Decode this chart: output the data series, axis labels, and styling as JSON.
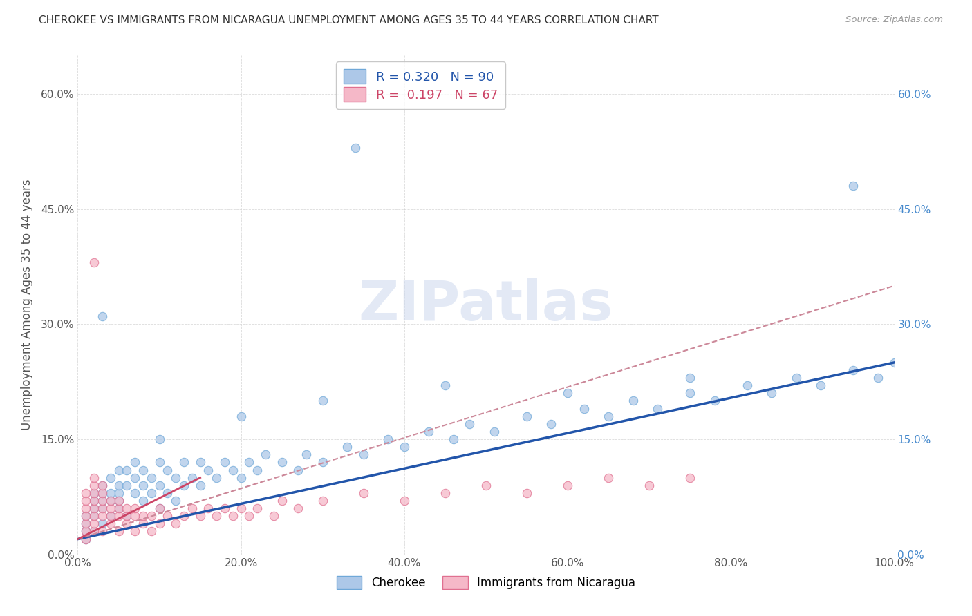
{
  "title": "CHEROKEE VS IMMIGRANTS FROM NICARAGUA UNEMPLOYMENT AMONG AGES 35 TO 44 YEARS CORRELATION CHART",
  "source": "Source: ZipAtlas.com",
  "ylabel": "Unemployment Among Ages 35 to 44 years",
  "xlim": [
    0,
    100
  ],
  "ylim": [
    0,
    65
  ],
  "xtick_labels": [
    "0.0%",
    "20.0%",
    "40.0%",
    "60.0%",
    "80.0%",
    "100.0%"
  ],
  "xtick_vals": [
    0,
    20,
    40,
    60,
    80,
    100
  ],
  "ytick_labels": [
    "0.0%",
    "15.0%",
    "30.0%",
    "45.0%",
    "60.0%"
  ],
  "ytick_vals": [
    0,
    15,
    30,
    45,
    60
  ],
  "cherokee_fill": "#adc8e8",
  "cherokee_edge": "#6fa8d8",
  "nicaragua_fill": "#f5b8c8",
  "nicaragua_edge": "#e07090",
  "line_cherokee_color": "#2255aa",
  "line_nicaragua_color": "#cc4466",
  "line_nicaragua_dash_color": "#cc8899",
  "R_cherokee": 0.32,
  "N_cherokee": 90,
  "R_nicaragua": 0.197,
  "N_nicaragua": 67,
  "watermark": "ZIPatlas",
  "background_color": "#ffffff",
  "grid_color": "#cccccc",
  "cherokee_x": [
    1,
    1,
    1,
    1,
    2,
    2,
    2,
    2,
    2,
    3,
    3,
    3,
    3,
    3,
    4,
    4,
    4,
    4,
    5,
    5,
    5,
    5,
    5,
    6,
    6,
    6,
    7,
    7,
    7,
    8,
    8,
    8,
    9,
    9,
    10,
    10,
    10,
    11,
    11,
    12,
    12,
    13,
    13,
    14,
    15,
    15,
    16,
    17,
    18,
    19,
    20,
    21,
    22,
    23,
    25,
    27,
    28,
    30,
    33,
    35,
    38,
    40,
    43,
    46,
    48,
    51,
    55,
    58,
    62,
    65,
    68,
    71,
    75,
    78,
    82,
    85,
    88,
    91,
    95,
    98,
    100,
    34,
    95,
    3,
    10,
    20,
    30,
    45,
    60,
    75
  ],
  "cherokee_y": [
    2,
    3,
    4,
    5,
    3,
    5,
    7,
    8,
    6,
    4,
    6,
    7,
    9,
    8,
    5,
    7,
    8,
    10,
    6,
    8,
    9,
    11,
    7,
    5,
    9,
    11,
    8,
    10,
    12,
    7,
    9,
    11,
    8,
    10,
    6,
    9,
    12,
    8,
    11,
    7,
    10,
    9,
    12,
    10,
    9,
    12,
    11,
    10,
    12,
    11,
    10,
    12,
    11,
    13,
    12,
    11,
    13,
    12,
    14,
    13,
    15,
    14,
    16,
    15,
    17,
    16,
    18,
    17,
    19,
    18,
    20,
    19,
    21,
    20,
    22,
    21,
    23,
    22,
    24,
    23,
    25,
    53,
    48,
    31,
    15,
    18,
    20,
    22,
    21,
    23
  ],
  "nicaragua_x": [
    1,
    1,
    1,
    1,
    1,
    1,
    1,
    2,
    2,
    2,
    2,
    2,
    2,
    2,
    2,
    3,
    3,
    3,
    3,
    3,
    3,
    4,
    4,
    4,
    4,
    5,
    5,
    5,
    5,
    6,
    6,
    6,
    7,
    7,
    7,
    8,
    8,
    9,
    9,
    10,
    10,
    11,
    12,
    13,
    14,
    15,
    16,
    17,
    18,
    19,
    20,
    21,
    22,
    24,
    25,
    27,
    30,
    35,
    40,
    45,
    50,
    55,
    60,
    65,
    70,
    75,
    2
  ],
  "nicaragua_y": [
    2,
    3,
    4,
    5,
    6,
    7,
    8,
    3,
    4,
    5,
    6,
    7,
    8,
    9,
    10,
    3,
    5,
    6,
    7,
    8,
    9,
    4,
    5,
    6,
    7,
    3,
    5,
    6,
    7,
    4,
    5,
    6,
    3,
    5,
    6,
    4,
    5,
    3,
    5,
    4,
    6,
    5,
    4,
    5,
    6,
    5,
    6,
    5,
    6,
    5,
    6,
    5,
    6,
    5,
    7,
    6,
    7,
    8,
    7,
    8,
    9,
    8,
    9,
    10,
    9,
    10,
    38
  ]
}
